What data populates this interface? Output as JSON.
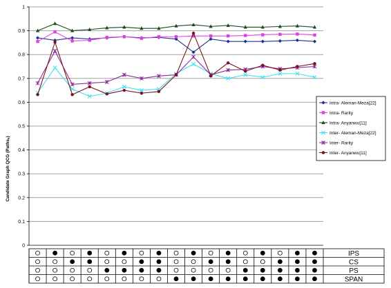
{
  "chart_data": {
    "type": "line",
    "title": "",
    "xlabel": "",
    "ylabel": "Candidate Graph QCG (Pathsₐ)",
    "ylim": [
      0,
      1
    ],
    "yticks": [
      "0",
      "0.1",
      "0.2",
      "0.3",
      "0.4",
      "0.5",
      "0.6",
      "0.7",
      "0.8",
      "0.9",
      "1"
    ],
    "grid": true,
    "legend_position": "right",
    "x": [
      1,
      2,
      3,
      4,
      5,
      6,
      7,
      8,
      9,
      10,
      11,
      12,
      13,
      14,
      15,
      16,
      17
    ],
    "series": [
      {
        "name": "Intra- Aleman-Meza[22]",
        "color": "#1f2f8f",
        "marker": "diamond",
        "values": [
          0.87,
          0.86,
          0.87,
          0.865,
          0.87,
          0.875,
          0.87,
          0.872,
          0.865,
          0.81,
          0.865,
          0.855,
          0.855,
          0.855,
          0.857,
          0.86,
          0.855
        ]
      },
      {
        "name": "Intra- Rarity",
        "color": "#e040e0",
        "marker": "square",
        "values": [
          0.855,
          0.895,
          0.857,
          0.86,
          0.872,
          0.875,
          0.868,
          0.875,
          0.875,
          0.878,
          0.878,
          0.878,
          0.88,
          0.883,
          0.885,
          0.886,
          0.882
        ]
      },
      {
        "name": "Intra- Anyanwu[11]",
        "color": "#1a4a1a",
        "marker": "triangle",
        "values": [
          0.9,
          0.93,
          0.9,
          0.905,
          0.912,
          0.915,
          0.91,
          0.91,
          0.92,
          0.925,
          0.918,
          0.922,
          0.915,
          0.915,
          0.918,
          0.92,
          0.915
        ]
      },
      {
        "name": "Inter- Aleman-Meza[22]",
        "color": "#40e0f0",
        "marker": "x",
        "values": [
          0.64,
          0.745,
          0.655,
          0.625,
          0.638,
          0.665,
          0.65,
          0.655,
          0.72,
          0.76,
          0.72,
          0.7,
          0.715,
          0.705,
          0.72,
          0.72,
          0.705
        ]
      },
      {
        "name": "Inter- Rarity",
        "color": "#8a2a9a",
        "marker": "star",
        "values": [
          0.68,
          0.815,
          0.675,
          0.68,
          0.685,
          0.715,
          0.7,
          0.71,
          0.715,
          0.79,
          0.715,
          0.735,
          0.738,
          0.75,
          0.74,
          0.745,
          0.75
        ]
      },
      {
        "name": "Inter- Anyanwu[11]",
        "color": "#7a1020",
        "marker": "circle",
        "values": [
          0.632,
          0.852,
          0.632,
          0.665,
          0.635,
          0.65,
          0.638,
          0.645,
          0.715,
          0.89,
          0.71,
          0.765,
          0.73,
          0.755,
          0.735,
          0.75,
          0.762
        ]
      }
    ],
    "config_table": {
      "rows": [
        {
          "label": "IPS",
          "values": [
            0,
            1,
            0,
            1,
            0,
            1,
            0,
            1,
            0,
            1,
            0,
            1,
            0,
            1,
            0,
            1,
            1
          ]
        },
        {
          "label": "CS",
          "values": [
            0,
            0,
            1,
            1,
            0,
            0,
            1,
            1,
            0,
            0,
            1,
            1,
            0,
            0,
            1,
            1,
            1
          ]
        },
        {
          "label": "PS",
          "values": [
            0,
            0,
            0,
            0,
            1,
            1,
            1,
            1,
            0,
            0,
            0,
            0,
            1,
            1,
            1,
            1,
            1
          ]
        },
        {
          "label": "SPAN",
          "values": [
            0,
            0,
            0,
            0,
            0,
            0,
            0,
            0,
            1,
            1,
            1,
            1,
            1,
            1,
            1,
            1,
            1
          ]
        }
      ]
    }
  }
}
